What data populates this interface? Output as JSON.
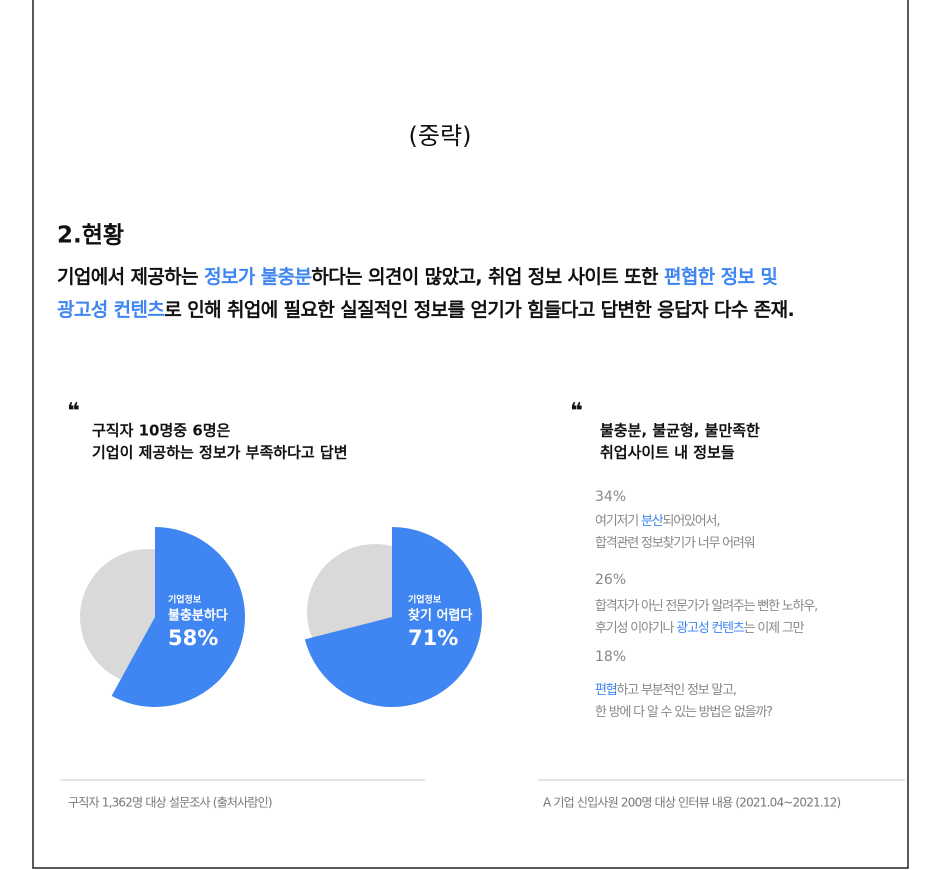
{
  "omitted": "(중략)",
  "section": {
    "title": "2.현황",
    "paragraph": [
      [
        {
          "text": "기업에서 제공하는 "
        },
        {
          "text": "정보가 불충분",
          "accent": true
        },
        {
          "text": "하다는 의견이 많았고, 취업 정보 사이트 또한 "
        },
        {
          "text": "편협한 정보 및",
          "accent": true
        }
      ],
      [
        {
          "text": "광고성 컨텐츠",
          "accent": true
        },
        {
          "text": "로 인해 취업에 필요한 실질적인 정보를 얻기가 힘들다고 답변한 응답자 다수 존재."
        }
      ]
    ]
  },
  "left_panel": {
    "title": [
      "구직자 10명중 6명은",
      "기업이 제공하는 정보가 부족하다고 답변"
    ],
    "source": "구직자 1,362명 대상 설문조사 (출처사람인)"
  },
  "chart_data": [
    {
      "type": "pie",
      "caption": [
        "기업정보",
        "불충분하다"
      ],
      "values": [
        58
      ],
      "value_labels": [
        "58%"
      ],
      "color": "#3f86f2",
      "rest_color": "#d9d9d9"
    },
    {
      "type": "pie",
      "caption": [
        "기업정보",
        "찾기 어렵다"
      ],
      "values": [
        71
      ],
      "value_labels": [
        "71%"
      ],
      "color": "#3f86f2",
      "rest_color": "#d9d9d9"
    }
  ],
  "right_panel": {
    "title": [
      "불충분, 불균형, 불만족한",
      "취업사이트 내 정보들"
    ],
    "items": [
      {
        "percent": "34%",
        "lines": [
          [
            {
              "text": "여기저기 "
            },
            {
              "text": "분산",
              "accent": true
            },
            {
              "text": "되어있어서,"
            }
          ],
          [
            {
              "text": "합격관련 정보찾기가 너무 어려워"
            }
          ]
        ]
      },
      {
        "percent": "26%",
        "lines": [
          [
            {
              "text": "합격자가 아닌 전문가가 알려주는 뻔한 노하우,"
            }
          ],
          [
            {
              "text": "후기성 이야기나 "
            },
            {
              "text": "광고성 컨텐츠",
              "accent": true
            },
            {
              "text": "는 이제 그만"
            }
          ]
        ]
      },
      {
        "percent": "18%",
        "lines": [
          [
            {
              "text": "편협",
              "accent": true
            },
            {
              "text": "하고 부분적인 정보 말고,"
            }
          ],
          [
            {
              "text": "한 방에 다 알 수 있는 방법은 없을까?"
            }
          ]
        ]
      }
    ],
    "source": "A 기업 신입사원 200명 대상 인터뷰 내용 (2021.04~2021.12)"
  }
}
